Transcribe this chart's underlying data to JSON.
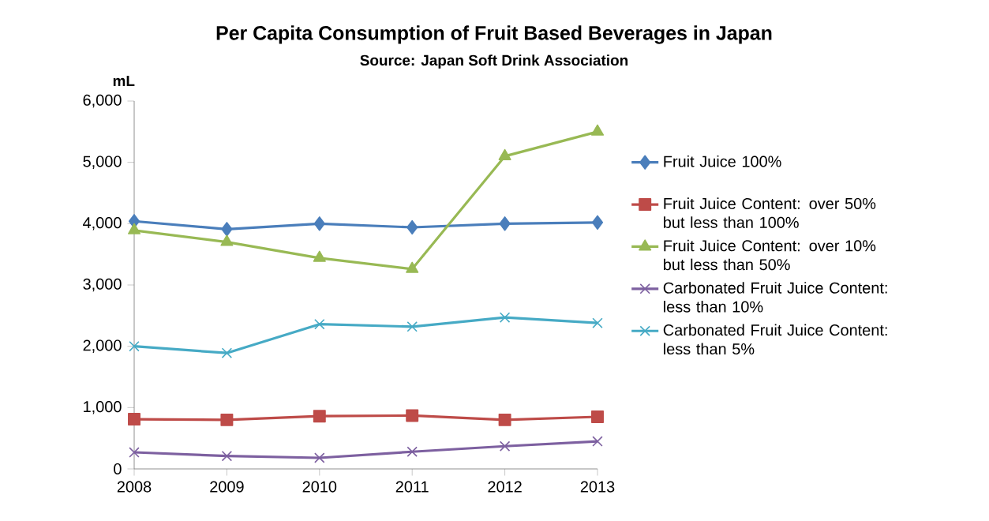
{
  "chart_data": {
    "type": "line",
    "title": "Per Capita Consumption of Fruit Based Beverages in Japan",
    "subtitle": "Source: Japan Soft Drink Association",
    "ylabel": "mL",
    "categories": [
      "2008",
      "2009",
      "2010",
      "2011",
      "2012",
      "2013"
    ],
    "ylim": [
      0,
      6000
    ],
    "yticks": [
      0,
      {
        "value": 1000,
        "label": "1,000"
      },
      {
        "value": 2000,
        "label": "2,000"
      },
      {
        "value": 3000,
        "label": "3,000"
      },
      {
        "value": 4000,
        "label": "4,000"
      },
      {
        "value": 5000,
        "label": "5,000"
      },
      {
        "value": 6000,
        "label": "6,000"
      }
    ],
    "grid": false,
    "legend": "right",
    "series": [
      {
        "name": "Fruit Juice 100%",
        "color": "#4a7ebb",
        "marker": "diamond",
        "values": [
          4040,
          3910,
          4000,
          3940,
          4000,
          4020
        ]
      },
      {
        "name": "Fruit Juice Content: over 50% but less than 100%",
        "color": "#be4b48",
        "marker": "square",
        "values": [
          810,
          800,
          860,
          870,
          800,
          850
        ]
      },
      {
        "name": "Fruit Juice Content: over 10% but less than 50%",
        "color": "#98b954",
        "marker": "triangle",
        "values": [
          3890,
          3700,
          3440,
          3260,
          5100,
          5500
        ]
      },
      {
        "name": "Carbonated Fruit Juice Content: less than 10%",
        "color": "#7d60a0",
        "marker": "cross",
        "values": [
          270,
          210,
          180,
          280,
          370,
          450
        ]
      },
      {
        "name": "Carbonated Fruit Juice Content: less than 5%",
        "color": "#46aac5",
        "marker": "cross",
        "values": [
          2000,
          1890,
          2360,
          2320,
          2470,
          2380
        ]
      }
    ]
  }
}
